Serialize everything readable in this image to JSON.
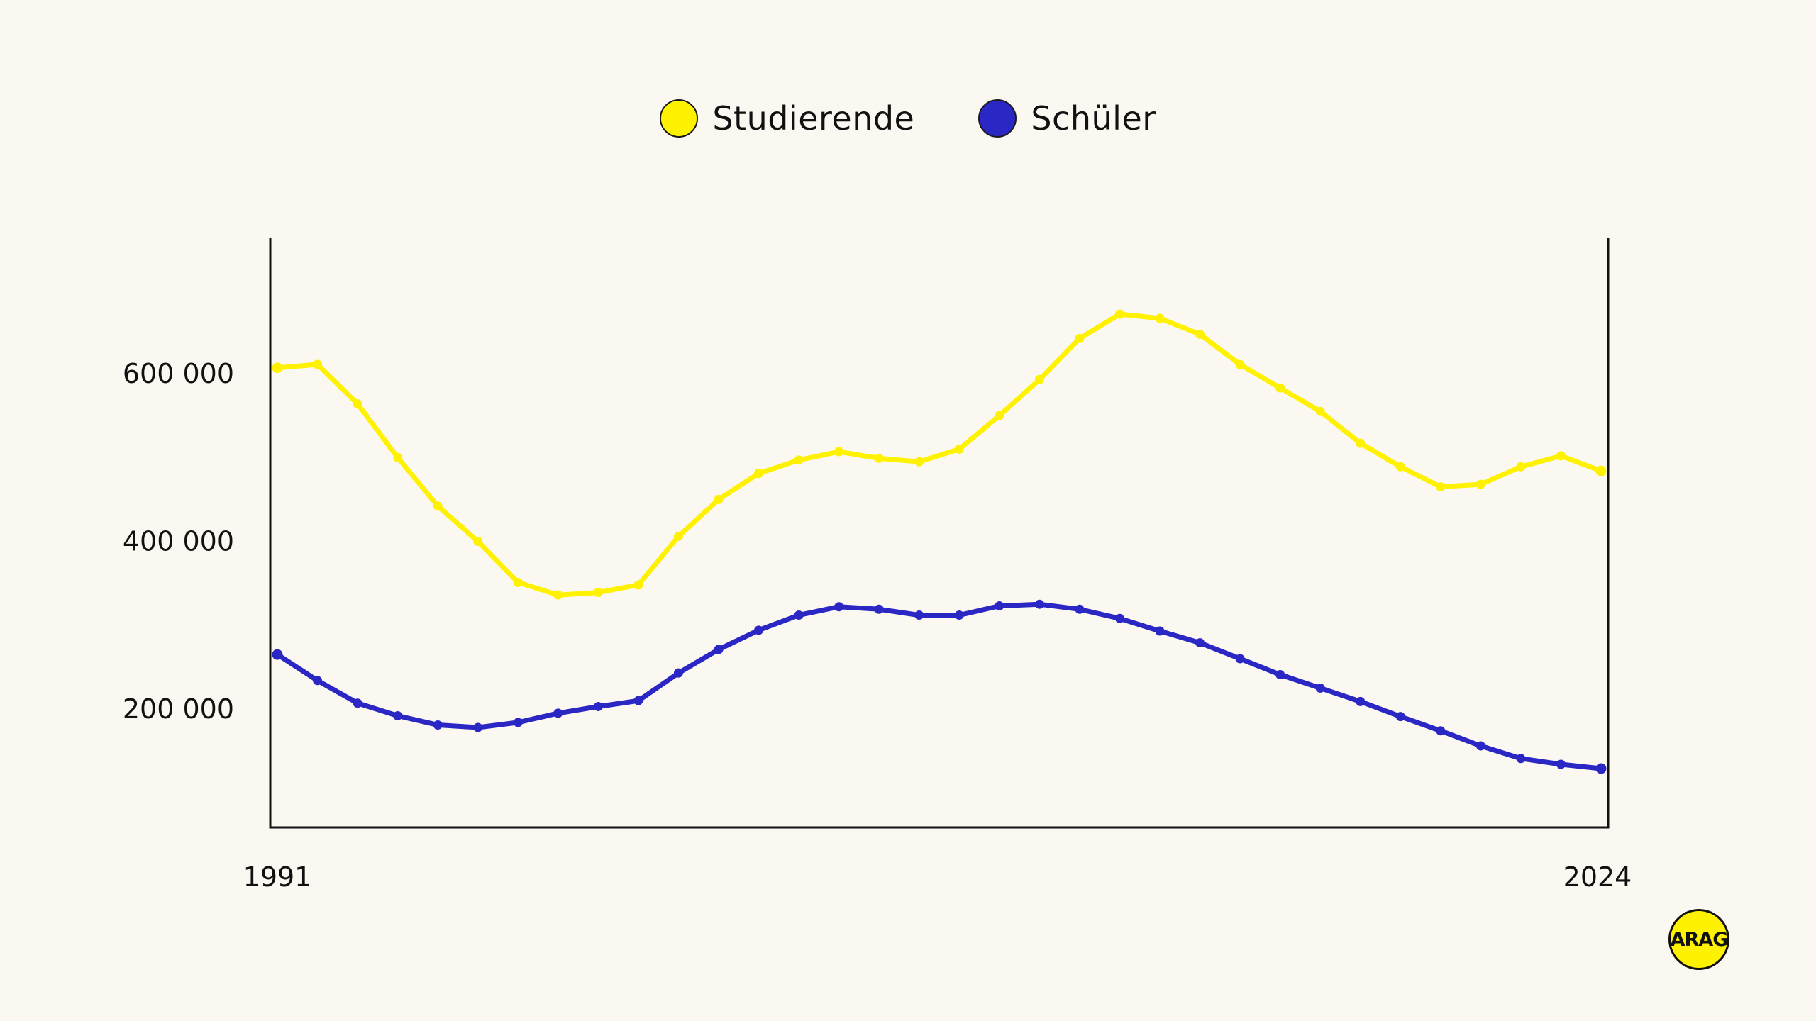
{
  "legend": {
    "items": [
      {
        "label": "Studierende",
        "color": "#fff200"
      },
      {
        "label": "Schüler",
        "color": "#2b27c4"
      }
    ]
  },
  "axes": {
    "y_ticks": [
      {
        "value": 600000,
        "label": "600 000"
      },
      {
        "value": 400000,
        "label": "400 000"
      },
      {
        "value": 200000,
        "label": "200 000"
      }
    ],
    "x_ticks": [
      {
        "value": 1991,
        "label": "1991"
      },
      {
        "value": 2024,
        "label": "2024"
      }
    ]
  },
  "logo": {
    "text": "ARAG"
  },
  "chart_data": {
    "type": "line",
    "title": "",
    "xlabel": "",
    "ylabel": "",
    "x": [
      1991,
      1992,
      1993,
      1994,
      1995,
      1996,
      1997,
      1998,
      1999,
      2000,
      2001,
      2002,
      2003,
      2004,
      2005,
      2006,
      2007,
      2008,
      2009,
      2010,
      2011,
      2012,
      2013,
      2014,
      2015,
      2016,
      2017,
      2018,
      2019,
      2020,
      2021,
      2022,
      2023,
      2024
    ],
    "series": [
      {
        "name": "Studierende",
        "color": "#fff200",
        "values": [
          607000,
          611000,
          564000,
          500000,
          442000,
          400000,
          351000,
          336000,
          339000,
          348000,
          406000,
          450000,
          481000,
          497000,
          507000,
          499000,
          495000,
          510000,
          550000,
          593000,
          642000,
          671000,
          666000,
          647000,
          611000,
          583000,
          555000,
          517000,
          489000,
          465000,
          468000,
          489000,
          502000,
          484000
        ]
      },
      {
        "name": "Schüler",
        "color": "#2b27c4",
        "values": [
          265000,
          234000,
          207000,
          192000,
          181000,
          178000,
          184000,
          195000,
          203000,
          210000,
          243000,
          271000,
          294000,
          312000,
          322000,
          319000,
          312000,
          312000,
          323000,
          325000,
          319000,
          308000,
          293000,
          279000,
          260000,
          241000,
          225000,
          209000,
          191000,
          174000,
          156000,
          141000,
          134000,
          129000
        ]
      }
    ],
    "x_tick_labels": [
      "1991",
      "2024"
    ],
    "y_tick_labels": [
      "200 000",
      "400 000",
      "600 000"
    ],
    "ylim": [
      58000,
      762000
    ],
    "xlim": [
      1990.8,
      2024.2
    ],
    "grid": false,
    "legend_position": "top-center"
  }
}
